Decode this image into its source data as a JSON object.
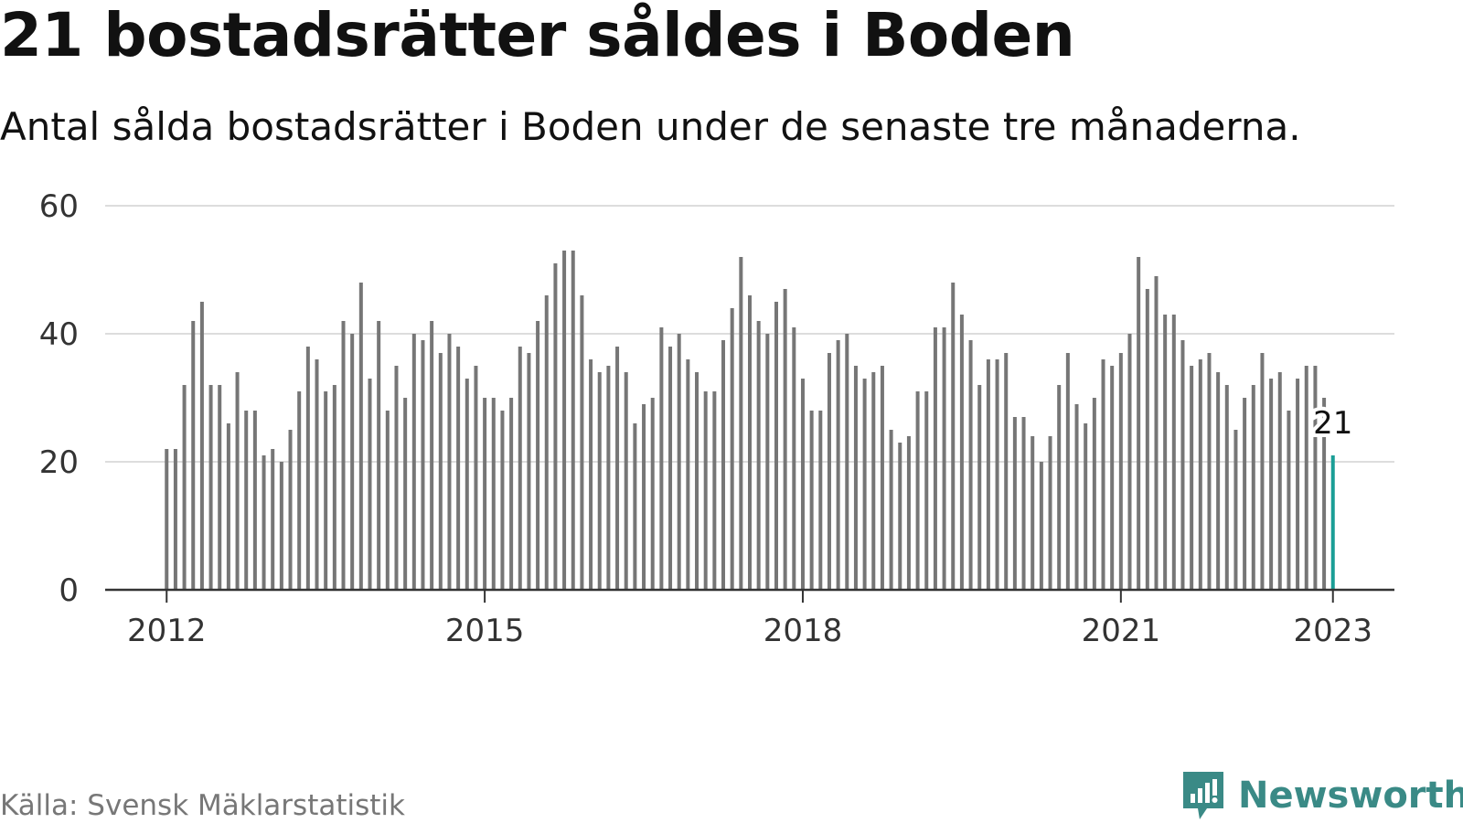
{
  "header": {
    "title": "21 bostadsrätter såldes i Boden",
    "subtitle": "Antal sålda bostadsrätter i Boden under de senaste tre månaderna."
  },
  "footer": {
    "source": "Källa: Svensk Mäklarstatistik",
    "brand": "Newsworthy"
  },
  "colors": {
    "bar": "#767676",
    "highlight": "#1a9e96",
    "grid": "#dddddd",
    "axis": "#333333",
    "brand": "#3a8a86"
  },
  "chart_data": {
    "type": "bar",
    "title": "21 bostadsrätter såldes i Boden",
    "subtitle": "Antal sålda bostadsrätter i Boden under de senaste tre månaderna.",
    "xlabel": "",
    "ylabel": "",
    "ylim": [
      0,
      60
    ],
    "yticks": [
      0,
      20,
      40,
      60
    ],
    "grid": true,
    "x_range": [
      2011.42,
      2023.58
    ],
    "xticks": [
      {
        "value": 2012.0,
        "label": "2012"
      },
      {
        "value": 2015.0,
        "label": "2015"
      },
      {
        "value": 2018.0,
        "label": "2018"
      },
      {
        "value": 2021.0,
        "label": "2021"
      },
      {
        "value": 2023.0,
        "label": "2023"
      }
    ],
    "start": {
      "year": 2012,
      "month": 1
    },
    "values": [
      22,
      22,
      32,
      42,
      45,
      32,
      32,
      26,
      34,
      28,
      28,
      21,
      22,
      20,
      25,
      31,
      38,
      36,
      31,
      32,
      42,
      40,
      48,
      33,
      42,
      28,
      35,
      30,
      40,
      39,
      42,
      37,
      40,
      38,
      33,
      35,
      30,
      30,
      28,
      30,
      38,
      37,
      42,
      46,
      51,
      53,
      53,
      46,
      36,
      34,
      35,
      38,
      34,
      26,
      29,
      30,
      41,
      38,
      40,
      36,
      34,
      31,
      31,
      39,
      44,
      52,
      46,
      42,
      40,
      45,
      47,
      41,
      33,
      28,
      28,
      37,
      39,
      40,
      35,
      33,
      34,
      35,
      25,
      23,
      24,
      31,
      31,
      41,
      41,
      48,
      43,
      39,
      32,
      36,
      36,
      37,
      27,
      27,
      24,
      20,
      24,
      32,
      37,
      29,
      26,
      30,
      36,
      35,
      37,
      40,
      52,
      47,
      49,
      43,
      43,
      39,
      35,
      36,
      37,
      34,
      32,
      25,
      30,
      32,
      37,
      33,
      34,
      28,
      33,
      35,
      35,
      30,
      21
    ],
    "highlight": {
      "index": 132,
      "label": "21",
      "value": 21
    }
  }
}
